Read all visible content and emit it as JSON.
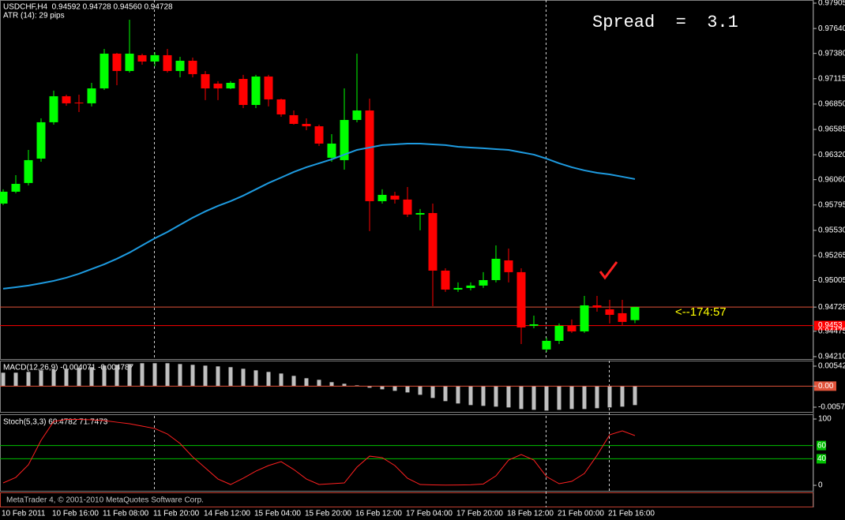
{
  "chart_data": [
    {
      "type": "candlestick",
      "title": "USDCHF,H4  0.94592 0.94728 0.94560 0.94728",
      "subtitle": "ATR (14): 29 pips",
      "annotations": [
        "Spread  =  3.1",
        "<--174:57"
      ],
      "categories": [
        "10 Feb 2011",
        null,
        null,
        null,
        "10 Feb 16:00",
        null,
        null,
        null,
        "11 Feb 08:00",
        null,
        null,
        null,
        "11 Feb 20:00",
        null,
        null,
        null,
        "14 Feb 12:00",
        null,
        null,
        null,
        "15 Feb 04:00",
        null,
        null,
        null,
        "15 Feb 20:00",
        null,
        null,
        null,
        "16 Feb 12:00",
        null,
        null,
        null,
        "17 Feb 04:00",
        null,
        null,
        null,
        "17 Feb 20:00",
        null,
        null,
        null,
        "18 Feb 12:00",
        null,
        null,
        null,
        "21 Feb 00:00",
        null,
        null,
        null,
        "21 Feb 16:00",
        null,
        null
      ],
      "open": [
        0.9581,
        0.95934,
        0.96025,
        0.9628,
        0.9666,
        0.96932,
        0.96866,
        0.96858,
        0.97014,
        0.97377,
        0.97196,
        0.97361,
        0.97295,
        0.97361,
        0.97196,
        0.97303,
        0.97163,
        0.97064,
        0.97014,
        0.97113,
        0.96841,
        0.97138,
        0.96899,
        0.96734,
        0.96643,
        0.96618,
        0.96289,
        0.96264,
        0.96684,
        0.96783,
        0.95835,
        0.95893,
        0.95852,
        0.95695,
        0.95711,
        0.95109,
        0.94911,
        0.94928,
        0.94953,
        0.9501,
        0.95216,
        0.95093,
        0.94532,
        0.94285,
        0.94375,
        0.94532,
        0.94474,
        0.94746,
        0.94705,
        0.94664,
        0.94592
      ],
      "high": [
        0.95959,
        0.96107,
        0.96371,
        0.96701,
        0.9699,
        0.96948,
        0.96948,
        0.97072,
        0.97427,
        0.97385,
        0.97732,
        0.97377,
        0.97394,
        0.97427,
        0.97344,
        0.97336,
        0.97196,
        0.97089,
        0.97089,
        0.97155,
        0.97155,
        0.97155,
        0.96907,
        0.96783,
        0.96701,
        0.96635,
        0.96536,
        0.97014,
        0.97377,
        0.96907,
        0.95959,
        0.95934,
        0.95983,
        0.95753,
        0.9581,
        0.95134,
        0.94986,
        0.94986,
        0.95093,
        0.95373,
        0.9534,
        0.95134,
        0.94639,
        0.94408,
        0.94557,
        0.94598,
        0.94845,
        0.94845,
        0.94804,
        0.94804,
        0.94728
      ],
      "low": [
        0.95794,
        0.95917,
        0.96,
        0.96247,
        0.96635,
        0.96833,
        0.96767,
        0.96825,
        0.96998,
        0.97047,
        0.97179,
        0.97262,
        0.97245,
        0.97179,
        0.9713,
        0.9713,
        0.96891,
        0.96891,
        0.97006,
        0.96808,
        0.96808,
        0.96825,
        0.96717,
        0.96635,
        0.96577,
        0.96412,
        0.96247,
        0.96165,
        0.9666,
        0.95522,
        0.9581,
        0.9581,
        0.9567,
        0.9553,
        0.94738,
        0.94887,
        0.94887,
        0.94903,
        0.94928,
        0.94986,
        0.94986,
        0.94342,
        0.94507,
        0.9426,
        0.94342,
        0.94458,
        0.94458,
        0.9468,
        0.94557,
        0.9454,
        0.9456
      ],
      "close": [
        0.95934,
        0.96016,
        0.96264,
        0.9666,
        0.96932,
        0.96858,
        0.96862,
        0.97014,
        0.97377,
        0.97196,
        0.97377,
        0.97295,
        0.97361,
        0.97196,
        0.97303,
        0.97163,
        0.97014,
        0.97014,
        0.97072,
        0.96841,
        0.97138,
        0.96899,
        0.96742,
        0.96643,
        0.96618,
        0.96437,
        0.96437,
        0.96684,
        0.96783,
        0.95835,
        0.95901,
        0.95852,
        0.95695,
        0.95711,
        0.95109,
        0.94911,
        0.94928,
        0.94953,
        0.9501,
        0.95233,
        0.95093,
        0.94515,
        0.94548,
        0.94375,
        0.94532,
        0.94474,
        0.94746,
        0.94722,
        0.94647,
        0.94573,
        0.94728
      ],
      "ma_values": [
        0.9492,
        0.94936,
        0.94953,
        0.94977,
        0.95002,
        0.95035,
        0.95076,
        0.95126,
        0.95175,
        0.95233,
        0.95298,
        0.95373,
        0.95447,
        0.95513,
        0.95588,
        0.95662,
        0.95728,
        0.95786,
        0.95835,
        0.95893,
        0.95959,
        0.96025,
        0.96082,
        0.9614,
        0.9619,
        0.96231,
        0.96272,
        0.96322,
        0.96371,
        0.96396,
        0.96421,
        0.96429,
        0.96437,
        0.96437,
        0.96429,
        0.96421,
        0.96404,
        0.96396,
        0.96388,
        0.96379,
        0.96371,
        0.96346,
        0.96322,
        0.9628,
        0.96231,
        0.9619,
        0.96157,
        0.96132,
        0.96115,
        0.96091,
        0.96066
      ],
      "ma_color": "#1e9be0",
      "up_color": "#00ff00",
      "down_color": "#ff0000",
      "hlines": [
        {
          "value": 0.94728,
          "color": "#e0533a"
        },
        {
          "value": 0.94535,
          "label": "0.9453",
          "color": "#ff0000"
        }
      ],
      "ylim": [
        0.94185,
        0.97938
      ],
      "yticks": [
        0.97905,
        {
          "value": 0.9764,
          "label": "0.97640"
        },
        {
          "value": 0.9738,
          "label": "0.97380"
        },
        0.97115,
        {
          "value": 0.9685,
          "label": "0.96850"
        },
        0.96585,
        {
          "value": 0.9632,
          "label": "0.96320"
        },
        {
          "value": 0.9606,
          "label": "0.96060"
        },
        0.95795,
        {
          "value": 0.9553,
          "label": "0.95530"
        },
        0.95265,
        0.95005,
        0.94728,
        0.94475,
        {
          "value": 0.9421,
          "label": "0.94210"
        }
      ]
    },
    {
      "type": "bar",
      "title": "MACD(12,26,9) -0.004071 -0.004787",
      "values": [
        0.00364,
        0.00364,
        0.00385,
        0.00428,
        0.00449,
        0.00471,
        0.00492,
        0.00514,
        0.00556,
        0.00578,
        0.00599,
        0.00621,
        0.00621,
        0.00621,
        0.00599,
        0.00578,
        0.00556,
        0.00535,
        0.00514,
        0.00471,
        0.00428,
        0.00385,
        0.00342,
        0.00278,
        0.00214,
        0.00171,
        0.00107,
        0.00064,
        0.00021,
        -0.00043,
        -0.00086,
        -0.00128,
        -0.00171,
        -0.00235,
        -0.00321,
        -0.00407,
        -0.00471,
        -0.00514,
        -0.00535,
        -0.00556,
        -0.00578,
        -0.00621,
        -0.00642,
        -0.00663,
        -0.00642,
        -0.00621,
        -0.00621,
        -0.00599,
        -0.00578,
        -0.00556,
        -0.00514
      ],
      "color": "#c0c0c0",
      "zero_color": "#e0533a",
      "ylim": [
        -0.00699,
        0.00692
      ],
      "yticks": [
        0.00542,
        {
          "value": 0,
          "label": "0.00"
        },
        -0.00571
      ]
    },
    {
      "type": "line",
      "title": "Stoch(5,3,3) 60.4782 71.7473",
      "values": [
        3.6,
        11.9,
        31.0,
        67.9,
        96.4,
        99.5,
        99.4,
        98.8,
        97.6,
        95.2,
        92.9,
        89.3,
        85.7,
        77.4,
        63.1,
        42.9,
        26.2,
        9.5,
        1.2,
        10.7,
        21.4,
        29.8,
        35.7,
        23.8,
        9.5,
        1.2,
        2.4,
        3.6,
        27.4,
        44.0,
        41.7,
        29.8,
        10.7,
        1.2,
        0.6,
        0.4,
        0.5,
        0.8,
        2.0,
        14.3,
        38.1,
        46.4,
        38.1,
        13.1,
        2.4,
        6.0,
        17.9,
        45.2,
        76.2,
        82.1,
        75.0
      ],
      "color": "#ff2020",
      "levels": [
        60,
        40
      ],
      "level_color": "#00c000",
      "ylim": [
        -8.3,
        104.8
      ],
      "yticks": [
        100,
        0
      ]
    }
  ],
  "footer": "MetaTrader 4, © 2001-2010 MetaQuotes Software Corp."
}
